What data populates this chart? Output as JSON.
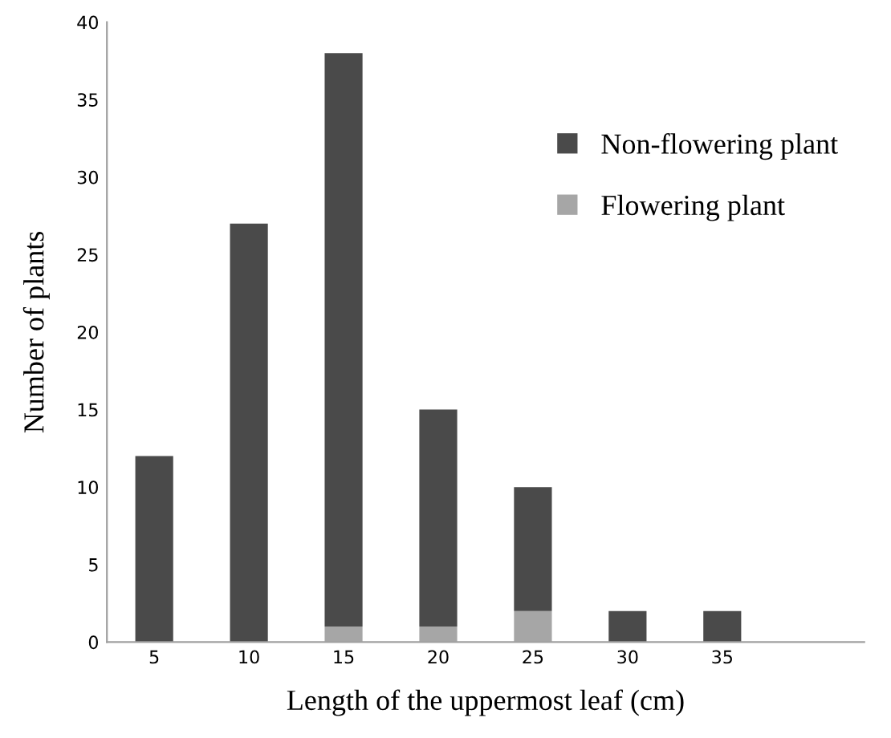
{
  "chart_data": {
    "type": "bar",
    "stacked": true,
    "xlabel": "Length of the uppermost leaf (cm)",
    "ylabel": "Number of plants",
    "categories": [
      "5",
      "10",
      "15",
      "20",
      "25",
      "30",
      "35",
      null
    ],
    "series": [
      {
        "name": "Flowering plant",
        "color": "#a6a6a6",
        "values": [
          0,
          0,
          1,
          1,
          2,
          0,
          0,
          null
        ]
      },
      {
        "name": "Non-flowering plant",
        "color": "#4a4a4a",
        "values": [
          12,
          27,
          37,
          14,
          8,
          2,
          2,
          null
        ]
      }
    ],
    "ylim": [
      0,
      40
    ],
    "yticks": [
      0,
      5,
      10,
      15,
      20,
      25,
      30,
      35,
      40
    ],
    "grid": false,
    "legend": "right"
  }
}
